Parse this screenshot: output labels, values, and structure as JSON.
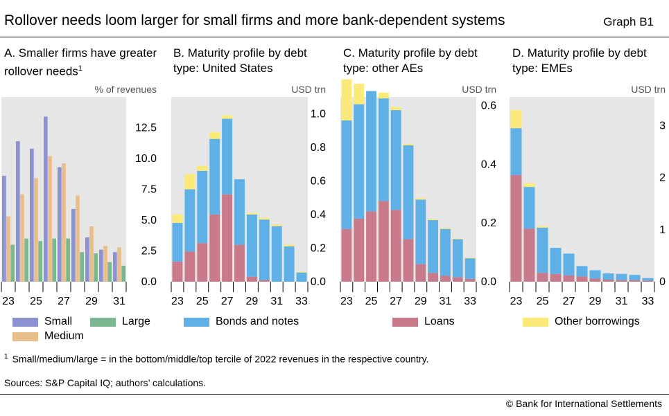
{
  "title": "Rollover needs loom larger for small firms and more bank-dependent systems",
  "graph_number": "Graph B1",
  "colors": {
    "small": "#8b91d1",
    "medium": "#e8bf8a",
    "large": "#7bb891",
    "bonds": "#5fb0e6",
    "loans": "#c97a8a",
    "other": "#fbe97a",
    "panel_bg": "#e6e6e6"
  },
  "legend": {
    "small": "Small",
    "medium": "Medium",
    "large": "Large",
    "bonds": "Bonds and notes",
    "loans": "Loans",
    "other": "Other borrowings"
  },
  "panels": [
    {
      "title": "A. Smaller firms have greater rollover needs",
      "title_sup": "1",
      "unit": "% of revenues"
    },
    {
      "title": "B. Maturity profile by debt type: United States",
      "unit": "USD trn"
    },
    {
      "title": "C. Maturity profile by debt type: other AEs",
      "unit": "USD trn"
    },
    {
      "title": "D. Maturity profile by debt type: EMEs",
      "unit": "USD trn"
    }
  ],
  "chart_data": [
    {
      "type": "bar",
      "id": "A",
      "categories": [
        "23",
        "24",
        "25",
        "26",
        "27",
        "28",
        "29",
        "30",
        "31"
      ],
      "xtick_labels": [
        "23",
        "25",
        "27",
        "29",
        "31"
      ],
      "series": [
        {
          "name": "Small",
          "values": [
            8.6,
            11.4,
            10.8,
            13.4,
            9.3,
            5.9,
            3.6,
            2.6,
            2.4
          ]
        },
        {
          "name": "Medium",
          "values": [
            5.3,
            7.1,
            8.4,
            10.2,
            9.6,
            7.0,
            4.5,
            2.9,
            2.8
          ]
        },
        {
          "name": "Large",
          "values": [
            3.0,
            3.5,
            3.3,
            3.5,
            3.5,
            2.4,
            2.3,
            1.6,
            1.3
          ]
        }
      ],
      "ylim": [
        0,
        15
      ],
      "yticks": [
        "0.0",
        "2.5",
        "5.0",
        "7.5",
        "10.0",
        "12.5"
      ],
      "ylabel": "% of revenues"
    },
    {
      "type": "bar-stacked",
      "id": "B",
      "categories": [
        "23",
        "24",
        "25",
        "26",
        "27",
        "28",
        "29",
        "30",
        "31",
        "32",
        "33"
      ],
      "xtick_labels": [
        "23",
        "25",
        "27",
        "29",
        "31",
        "33"
      ],
      "series": [
        {
          "name": "Loans",
          "values": [
            0.12,
            0.18,
            0.23,
            0.4,
            0.52,
            0.22,
            0.03,
            0.01,
            0.0,
            0.0,
            0.0
          ]
        },
        {
          "name": "Bonds and notes",
          "values": [
            0.23,
            0.37,
            0.43,
            0.45,
            0.45,
            0.39,
            0.37,
            0.36,
            0.33,
            0.21,
            0.055
          ]
        },
        {
          "name": "Other borrowings",
          "values": [
            0.05,
            0.09,
            0.03,
            0.04,
            0.02,
            0.0,
            0.01,
            0.01,
            0.01,
            0.01,
            0.005
          ]
        }
      ],
      "ylim": [
        0,
        1.1
      ],
      "yticks": [
        "0.0",
        "0.2",
        "0.4",
        "0.6",
        "0.8",
        "1.0"
      ],
      "ylabel": "USD trn"
    },
    {
      "type": "bar-stacked",
      "id": "C",
      "categories": [
        "23",
        "24",
        "25",
        "26",
        "27",
        "28",
        "29",
        "30",
        "31",
        "32",
        "33"
      ],
      "xtick_labels": [
        "23",
        "25",
        "27",
        "29",
        "31",
        "33"
      ],
      "series": [
        {
          "name": "Loans",
          "values": [
            0.18,
            0.215,
            0.24,
            0.275,
            0.245,
            0.145,
            0.06,
            0.03,
            0.02,
            0.015,
            0.01
          ]
        },
        {
          "name": "Bonds and notes",
          "values": [
            0.37,
            0.39,
            0.41,
            0.35,
            0.34,
            0.32,
            0.22,
            0.18,
            0.16,
            0.13,
            0.07
          ]
        },
        {
          "name": "Other borrowings",
          "values": [
            0.14,
            0.07,
            0.0,
            0.02,
            0.01,
            0.005,
            0.005,
            0.003,
            0.003,
            0.002,
            0.002
          ]
        }
      ],
      "ylim": [
        0,
        0.63
      ],
      "yticks": [
        "0.0",
        "0.2",
        "0.4",
        "0.6"
      ],
      "ylabel": "USD trn"
    },
    {
      "type": "bar-stacked",
      "id": "D",
      "categories": [
        "23",
        "24",
        "25",
        "26",
        "27",
        "28",
        "29",
        "30",
        "31",
        "32",
        "33"
      ],
      "xtick_labels": [
        "23",
        "25",
        "27",
        "29",
        "31",
        "33"
      ],
      "series": [
        {
          "name": "Loans",
          "values": [
            2.05,
            1.02,
            0.17,
            0.15,
            0.12,
            0.1,
            0.06,
            0.04,
            0.03,
            0.03,
            0.02
          ]
        },
        {
          "name": "Bonds and notes",
          "values": [
            0.9,
            0.8,
            0.87,
            0.5,
            0.42,
            0.2,
            0.16,
            0.12,
            0.12,
            0.1,
            0.05
          ]
        },
        {
          "name": "Other borrowings",
          "values": [
            0.35,
            0.07,
            0.03,
            0.0,
            0.0,
            0.0,
            0.0,
            0.0,
            0.0,
            0.0,
            0.0
          ]
        }
      ],
      "ylim": [
        0,
        3.55
      ],
      "yticks": [
        "0",
        "1",
        "2",
        "3"
      ],
      "ylabel": "USD trn"
    }
  ],
  "footnote": {
    "marker": "1",
    "text": "Small/medium/large = in the bottom/middle/top tercile of 2022 revenues in the respective country."
  },
  "sources": "Sources: S&P Capital IQ; authors’ calculations.",
  "credit": "© Bank for International Settlements"
}
